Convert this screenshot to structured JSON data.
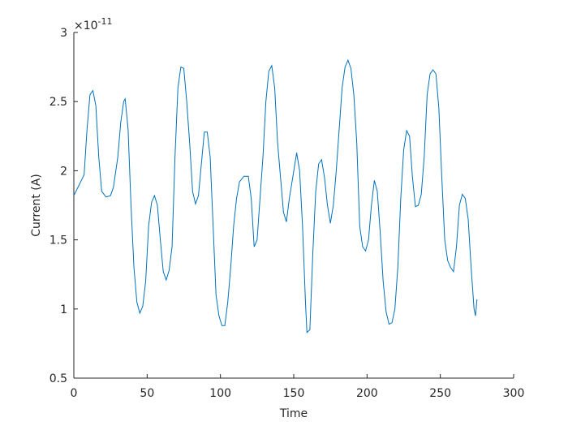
{
  "chart_data": {
    "type": "line",
    "xlabel": "Time",
    "ylabel": "Current (A)",
    "y_multiplier": {
      "base": "×10",
      "exponent": "-11"
    },
    "xlim": [
      0,
      300
    ],
    "ylim": [
      0.5,
      3
    ],
    "xticks": [
      0,
      50,
      100,
      150,
      200,
      250,
      300
    ],
    "yticks": [
      0.5,
      1,
      1.5,
      2,
      2.5,
      3
    ],
    "grid": false,
    "series": [
      {
        "color": "#0072bd",
        "x": [
          0,
          7,
          9,
          11,
          13,
          15,
          17,
          19,
          22,
          25,
          27,
          30,
          32,
          34,
          35,
          37,
          39,
          41,
          43,
          45,
          47,
          49,
          51,
          53,
          55,
          57,
          59,
          61,
          63,
          65,
          67,
          69,
          71,
          73,
          75,
          77,
          79,
          81,
          83,
          85,
          87,
          89,
          91,
          93,
          95,
          97,
          99,
          101,
          103,
          105,
          107,
          109,
          111,
          113,
          116,
          119,
          121,
          123,
          125,
          127,
          129,
          131,
          133,
          135,
          137,
          139,
          141,
          143,
          145,
          147,
          149,
          152,
          154,
          156,
          158,
          159,
          161,
          163,
          165,
          167,
          169,
          171,
          173,
          175,
          177,
          179,
          181,
          183,
          185,
          187,
          189,
          191,
          193,
          195,
          197,
          199,
          201,
          203,
          205,
          207,
          209,
          211,
          213,
          215,
          217,
          219,
          221,
          223,
          225,
          227,
          229,
          231,
          233,
          235,
          237,
          239,
          241,
          243,
          245,
          247,
          249,
          251,
          253,
          255,
          257,
          259,
          261,
          263,
          265,
          267,
          269,
          271,
          273,
          274,
          275
        ],
        "values": [
          1.82,
          1.97,
          2.3,
          2.55,
          2.58,
          2.47,
          2.1,
          1.85,
          1.81,
          1.82,
          1.88,
          2.1,
          2.35,
          2.5,
          2.52,
          2.3,
          1.75,
          1.3,
          1.05,
          0.97,
          1.02,
          1.2,
          1.6,
          1.77,
          1.82,
          1.75,
          1.5,
          1.27,
          1.21,
          1.28,
          1.45,
          2.1,
          2.6,
          2.75,
          2.74,
          2.5,
          2.2,
          1.85,
          1.76,
          1.82,
          2.05,
          2.28,
          2.28,
          2.1,
          1.6,
          1.1,
          0.95,
          0.88,
          0.88,
          1.05,
          1.3,
          1.6,
          1.8,
          1.92,
          1.96,
          1.96,
          1.8,
          1.45,
          1.5,
          1.8,
          2.1,
          2.5,
          2.72,
          2.76,
          2.6,
          2.2,
          1.95,
          1.7,
          1.63,
          1.8,
          1.93,
          2.13,
          2.0,
          1.6,
          1.05,
          0.83,
          0.85,
          1.4,
          1.85,
          2.05,
          2.08,
          1.95,
          1.75,
          1.62,
          1.75,
          2.0,
          2.3,
          2.6,
          2.75,
          2.8,
          2.74,
          2.55,
          2.2,
          1.6,
          1.45,
          1.42,
          1.5,
          1.75,
          1.93,
          1.85,
          1.55,
          1.2,
          0.98,
          0.89,
          0.9,
          1.0,
          1.3,
          1.8,
          2.15,
          2.29,
          2.25,
          1.95,
          1.74,
          1.75,
          1.83,
          2.1,
          2.55,
          2.7,
          2.73,
          2.7,
          2.45,
          1.95,
          1.5,
          1.35,
          1.3,
          1.27,
          1.45,
          1.75,
          1.83,
          1.8,
          1.65,
          1.3,
          1.0,
          0.95,
          1.07
        ]
      }
    ]
  }
}
